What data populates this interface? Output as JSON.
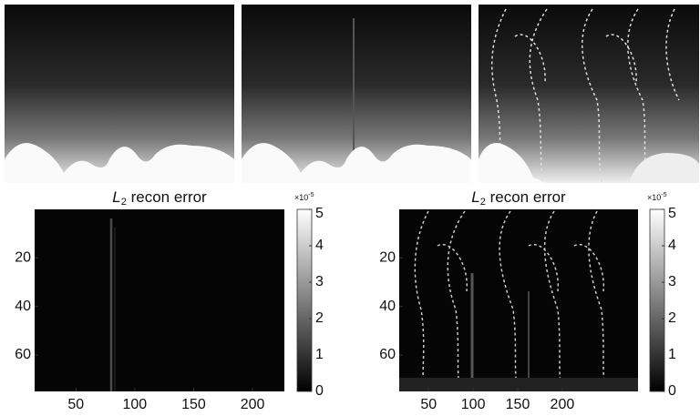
{
  "chart_data": [
    {
      "type": "heatmap",
      "colormap": "gray",
      "title": {
        "symbol": "L",
        "subscript": "2",
        "text": " recon error"
      },
      "xlim": [
        15,
        227
      ],
      "xticks": [
        50,
        100,
        150,
        200
      ],
      "ylim": [
        0,
        75
      ],
      "yticks": [
        20,
        40,
        60
      ],
      "y_reversed": true,
      "colorbar": {
        "clim": [
          0,
          5
        ],
        "ticks": [
          0,
          1,
          2,
          3,
          4,
          5
        ],
        "multiplier": {
          "base": "×10",
          "exponent": "-5"
        }
      }
    },
    {
      "type": "heatmap",
      "colormap": "gray",
      "title": {
        "symbol": "L",
        "subscript": "2",
        "text": " recon error"
      },
      "xlim": [
        17,
        285
      ],
      "xticks": [
        50,
        100,
        150,
        200
      ],
      "ylim": [
        0,
        75
      ],
      "yticks": [
        20,
        40,
        60
      ],
      "y_reversed": true,
      "colorbar": {
        "clim": [
          0,
          5
        ],
        "ticks": [
          0,
          1,
          2,
          3,
          4,
          5
        ],
        "multiplier": {
          "base": "×10",
          "exponent": "-5"
        }
      }
    }
  ]
}
